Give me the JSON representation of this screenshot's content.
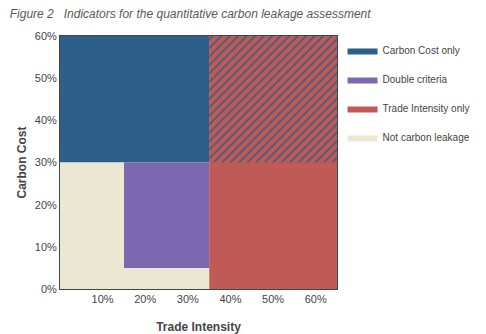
{
  "chart_data": {
    "type": "regions",
    "title": "Figure 2",
    "subtitle": "Indicators for the quantitative carbon leakage assessment",
    "x_label": "Trade Intensity",
    "y_label": "Carbon Cost",
    "xlim": [
      0,
      0.65
    ],
    "ylim": [
      0,
      0.6
    ],
    "xticks": [
      {
        "value": 0.1,
        "label": "10%"
      },
      {
        "value": 0.2,
        "label": "20%"
      },
      {
        "value": 0.3,
        "label": "30%"
      },
      {
        "value": 0.4,
        "label": "40%"
      },
      {
        "value": 0.5,
        "label": "50%"
      },
      {
        "value": 0.6,
        "label": "60%"
      }
    ],
    "yticks": [
      {
        "value": 0.0,
        "label": "0%"
      },
      {
        "value": 0.1,
        "label": "10%"
      },
      {
        "value": 0.2,
        "label": "20%"
      },
      {
        "value": 0.3,
        "label": "30%"
      },
      {
        "value": 0.4,
        "label": "40%"
      },
      {
        "value": 0.5,
        "label": "50%"
      },
      {
        "value": 0.6,
        "label": "60%"
      }
    ],
    "grid": false,
    "legend": "right",
    "series": [
      {
        "name": "Carbon Cost only",
        "color": "#2E5F8A",
        "regions": [
          {
            "x": [
              0.0,
              0.35
            ],
            "y": [
              0.3,
              0.6
            ]
          }
        ]
      },
      {
        "name": "Double criteria",
        "color": "#7B68B0",
        "regions": [
          {
            "x": [
              0.15,
              0.35
            ],
            "y": [
              0.05,
              0.3
            ]
          }
        ]
      },
      {
        "name": "Trade Intensity only",
        "color": "#C05A57",
        "regions": [
          {
            "x": [
              0.35,
              0.65
            ],
            "y": [
              0.0,
              0.6
            ]
          },
          {
            "x": [
              0.35,
              0.65
            ],
            "y": [
              0.3,
              0.6
            ],
            "marker": "hatch",
            "color": "#2E5F8A"
          }
        ]
      },
      {
        "name": "Not carbon leakage",
        "color": "#EAE7D2",
        "regions": [
          {
            "x": [
              0.0,
              0.15
            ],
            "y": [
              0.0,
              0.3
            ]
          },
          {
            "x": [
              0.15,
              0.35
            ],
            "y": [
              0.0,
              0.05
            ]
          }
        ]
      }
    ]
  }
}
